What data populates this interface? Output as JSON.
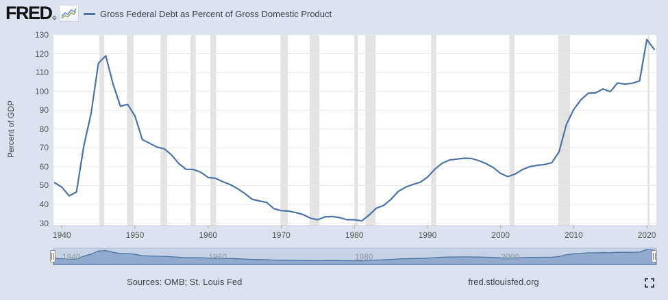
{
  "header": {
    "logo_text": "FRED",
    "registered_mark": "®",
    "legend_label": "Gross Federal Debt as Percent of Gross Domestic Product",
    "legend_color": "#4a72a4"
  },
  "chart_data": {
    "type": "line",
    "title": "Gross Federal Debt as Percent of Gross Domestic Product",
    "ylabel": "Percent of GDP",
    "xlabel": "",
    "ylim": [
      30,
      130
    ],
    "xlim": [
      1939,
      2021
    ],
    "yticks": [
      30,
      40,
      50,
      60,
      70,
      80,
      90,
      100,
      110,
      120,
      130
    ],
    "xticks": [
      1940,
      1950,
      1960,
      1970,
      1980,
      1990,
      2000,
      2010,
      2020
    ],
    "grid": "horizontal",
    "legend_position": "top-left",
    "line_color": "#4a72a4",
    "recession_shading_color": "#e3e3e3",
    "recession_bands": [
      [
        1945.1,
        1945.8
      ],
      [
        1948.9,
        1949.8
      ],
      [
        1953.5,
        1954.4
      ],
      [
        1957.6,
        1958.3
      ],
      [
        1960.3,
        1961.1
      ],
      [
        1969.9,
        1970.9
      ],
      [
        1973.9,
        1975.2
      ],
      [
        1980.0,
        1980.5
      ],
      [
        1981.5,
        1982.9
      ],
      [
        1990.5,
        1991.2
      ],
      [
        2001.2,
        2001.9
      ],
      [
        2007.9,
        2009.5
      ],
      [
        2020.1,
        2020.35
      ]
    ],
    "series": [
      {
        "name": "Gross Federal Debt as Percent of Gross Domestic Product",
        "x": [
          1939,
          1940,
          1941,
          1942,
          1943,
          1944,
          1945,
          1946,
          1947,
          1948,
          1949,
          1950,
          1951,
          1952,
          1953,
          1954,
          1955,
          1956,
          1957,
          1958,
          1959,
          1960,
          1961,
          1962,
          1963,
          1964,
          1965,
          1966,
          1967,
          1968,
          1969,
          1970,
          1971,
          1972,
          1973,
          1974,
          1975,
          1976,
          1977,
          1978,
          1979,
          1980,
          1981,
          1982,
          1983,
          1984,
          1985,
          1986,
          1987,
          1988,
          1989,
          1990,
          1991,
          1992,
          1993,
          1994,
          1995,
          1996,
          1997,
          1998,
          1999,
          2000,
          2001,
          2002,
          2003,
          2004,
          2005,
          2006,
          2007,
          2008,
          2009,
          2010,
          2011,
          2012,
          2013,
          2014,
          2015,
          2016,
          2017,
          2018,
          2019,
          2020,
          2021
        ],
        "values": [
          51.5,
          49.1,
          44.5,
          46.5,
          70.9,
          88.4,
          114.9,
          118.9,
          103.9,
          92.1,
          93.1,
          86.9,
          74.4,
          72.4,
          70.4,
          69.5,
          66.2,
          61.6,
          58.6,
          58.5,
          57.0,
          54.3,
          53.8,
          52.0,
          50.5,
          48.4,
          45.8,
          42.7,
          41.8,
          41.0,
          37.7,
          36.6,
          36.4,
          35.6,
          34.5,
          32.6,
          31.8,
          33.3,
          33.5,
          32.9,
          31.8,
          31.8,
          31.2,
          34.2,
          37.9,
          39.4,
          42.6,
          46.8,
          49.1,
          50.5,
          51.7,
          54.4,
          58.6,
          61.8,
          63.5,
          64.0,
          64.5,
          64.3,
          63.2,
          61.6,
          59.5,
          56.4,
          54.7,
          56.1,
          58.5,
          60.0,
          60.7,
          61.1,
          62.1,
          67.9,
          82.4,
          90.4,
          95.6,
          99.0,
          99.2,
          101.3,
          99.8,
          104.5,
          103.8,
          104.3,
          105.5,
          127.5,
          122.3
        ]
      }
    ]
  },
  "navigator": {
    "type": "area",
    "visible_labels": [
      "1940",
      "1960",
      "1980",
      "2000"
    ],
    "label_years": [
      1940,
      1960,
      1980,
      2000
    ],
    "range_full": true,
    "area_fill": "#8ba5cb",
    "area_stroke": "#4a72a4",
    "track_bg": "#c6d2e5"
  },
  "footer": {
    "sources": "Sources: OMB; St. Louis Fed",
    "site": "fred.stlouisfed.org"
  },
  "icons": {
    "logo_chart_icon": "line-chart-icon",
    "fullscreen_icon": "fullscreen-icon",
    "navigator_handles": "drag-handle-icon"
  },
  "colors": {
    "page_bg": "#dce3ee",
    "plot_bg": "#ffffff",
    "gridline": "#e9e9e9",
    "axis_line": "#cfcfcf",
    "tick_text": "#555555",
    "text": "#444444"
  }
}
